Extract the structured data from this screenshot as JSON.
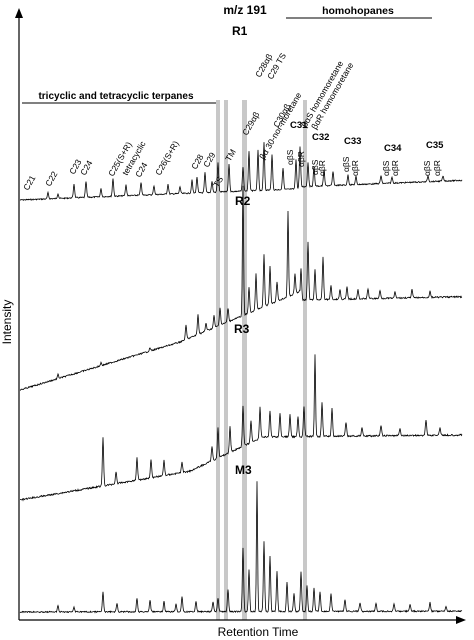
{
  "chart_data": {
    "type": "line",
    "title": "m/z 191",
    "xlabel": "Retention Time",
    "ylabel": "Intensity",
    "grid": false,
    "legend": "none",
    "series": [
      {
        "name": "R1"
      },
      {
        "name": "R2"
      },
      {
        "name": "R3"
      },
      {
        "name": "M3"
      }
    ],
    "group_labels": {
      "tricyclic": "tricyclic and tetracyclic terpanes",
      "homohopanes": "homohopanes"
    },
    "peak_labels": {
      "c21": "C21",
      "c22": "C22",
      "c23": "C23",
      "c24": "C24",
      "c25": "C25(S+R)",
      "tetracyclic": "tetracyclic",
      "c24b": "C24",
      "c26": "C26(S+R)",
      "c28": "C28",
      "c29": "C29",
      "ts": "TS",
      "tm": "TM",
      "c29ab": "C29αβ",
      "nor": "βα 30-nor-moretane",
      "c30ab": "C30αβ",
      "c28ab": "C28αβ",
      "c29ts": "C29 TS",
      "homomoretane_s": "βαS homomoretane",
      "homomoretane_r": "βαR homomoretane",
      "c31": "C31",
      "c32": "C32",
      "c33": "C33",
      "c34": "C34",
      "c35": "C35",
      "abS": "αβS",
      "abR": "αβR"
    },
    "highlight_colors": {
      "band": "#c8c8c8",
      "trace": "#000000"
    }
  }
}
